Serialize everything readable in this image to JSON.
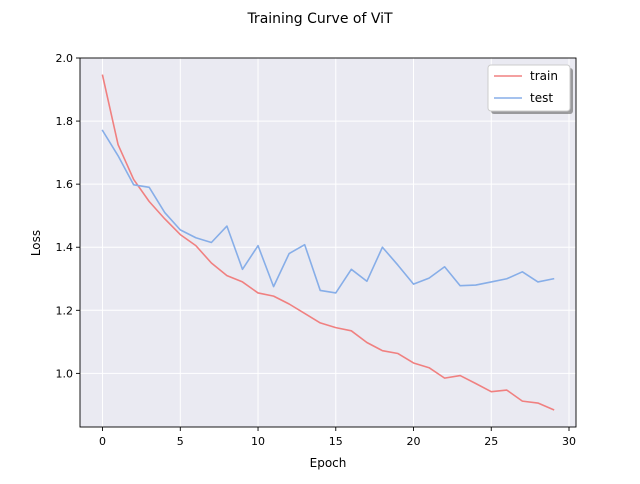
{
  "chart_data": {
    "type": "line",
    "title": "Training Curve of ViT",
    "xlabel": "Epoch",
    "ylabel": "Loss",
    "xlim": [
      -1.45,
      30.45
    ],
    "ylim": [
      0.83,
      2.0
    ],
    "x_ticks": [
      0,
      5,
      10,
      15,
      20,
      25,
      30
    ],
    "y_ticks": [
      1.0,
      1.2,
      1.4,
      1.6,
      1.8,
      2.0
    ],
    "x_tick_labels": [
      "0",
      "5",
      "10",
      "15",
      "20",
      "25",
      "30"
    ],
    "y_tick_labels": [
      "1.0",
      "1.2",
      "1.4",
      "1.6",
      "1.8",
      "2.0"
    ],
    "grid": true,
    "legend_position": "top-right",
    "background_color": "#eaeaf2",
    "series": [
      {
        "name": "train",
        "color": "#f08080",
        "x": [
          0,
          1,
          2,
          3,
          4,
          5,
          6,
          7,
          8,
          9,
          10,
          11,
          12,
          13,
          14,
          15,
          16,
          17,
          18,
          19,
          20,
          21,
          22,
          23,
          24,
          25,
          26,
          27,
          28,
          29
        ],
        "values": [
          1.945,
          1.725,
          1.615,
          1.545,
          1.49,
          1.44,
          1.405,
          1.35,
          1.31,
          1.29,
          1.255,
          1.245,
          1.22,
          1.19,
          1.16,
          1.145,
          1.135,
          1.098,
          1.072,
          1.063,
          1.033,
          1.018,
          0.985,
          0.993,
          0.968,
          0.942,
          0.947,
          0.912,
          0.906,
          0.885
        ]
      },
      {
        "name": "test",
        "color": "#87aee8",
        "x": [
          0,
          1,
          2,
          3,
          4,
          5,
          6,
          7,
          8,
          9,
          10,
          11,
          12,
          13,
          14,
          15,
          16,
          17,
          18,
          19,
          20,
          21,
          22,
          23,
          24,
          25,
          26,
          27,
          28,
          29
        ],
        "values": [
          1.77,
          1.69,
          1.598,
          1.59,
          1.51,
          1.455,
          1.43,
          1.415,
          1.467,
          1.33,
          1.405,
          1.275,
          1.38,
          1.408,
          1.263,
          1.255,
          1.33,
          1.292,
          1.4,
          1.343,
          1.283,
          1.302,
          1.338,
          1.278,
          1.28,
          1.29,
          1.3,
          1.322,
          1.29,
          1.3
        ]
      }
    ]
  }
}
